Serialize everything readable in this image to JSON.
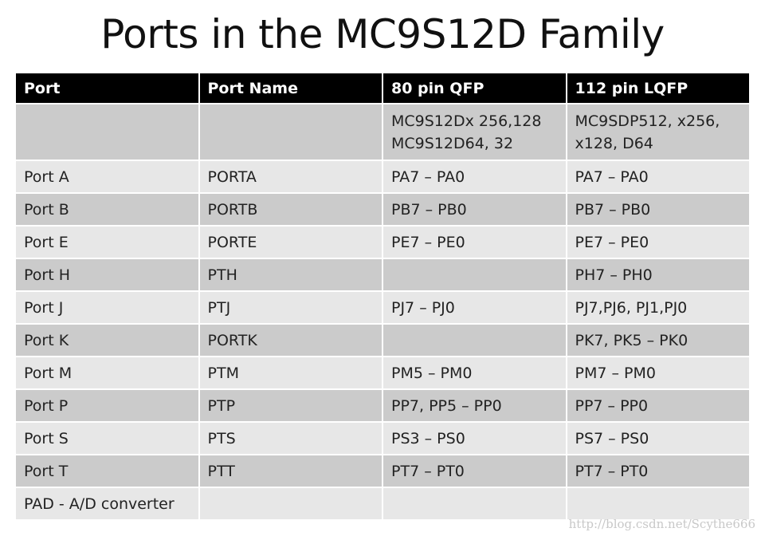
{
  "title": "Ports in the MC9S12D Family",
  "table": {
    "headers": [
      "Port",
      "Port Name",
      "80 pin QFP",
      "112 pin LQFP"
    ],
    "rows": [
      [
        "",
        "",
        "MC9S12Dx 256,128 MC9S12D64, 32",
        "MC9SDP512, x256, x128, D64"
      ],
      [
        "Port A",
        "PORTA",
        "PA7 – PA0",
        "PA7 – PA0"
      ],
      [
        "Port B",
        "PORTB",
        "PB7 – PB0",
        "PB7 – PB0"
      ],
      [
        "Port E",
        "PORTE",
        "PE7 – PE0",
        "PE7 – PE0"
      ],
      [
        "Port H",
        "PTH",
        "",
        "PH7 – PH0"
      ],
      [
        "Port J",
        "PTJ",
        "PJ7 – PJ0",
        "PJ7,PJ6, PJ1,PJ0"
      ],
      [
        "Port K",
        "PORTK",
        "",
        "PK7, PK5 – PK0"
      ],
      [
        "Port M",
        "PTM",
        "PM5 – PM0",
        "PM7 – PM0"
      ],
      [
        "Port P",
        "PTP",
        "PP7, PP5 – PP0",
        "PP7 – PP0"
      ],
      [
        "Port S",
        "PTS",
        "PS3 – PS0",
        "PS7 – PS0"
      ],
      [
        "Port T",
        "PTT",
        "PT7 – PT0",
        "PT7 – PT0"
      ],
      [
        "PAD - A/D converter",
        "",
        "",
        ""
      ]
    ]
  },
  "watermark": "http://blog.csdn.net/Scythe666"
}
